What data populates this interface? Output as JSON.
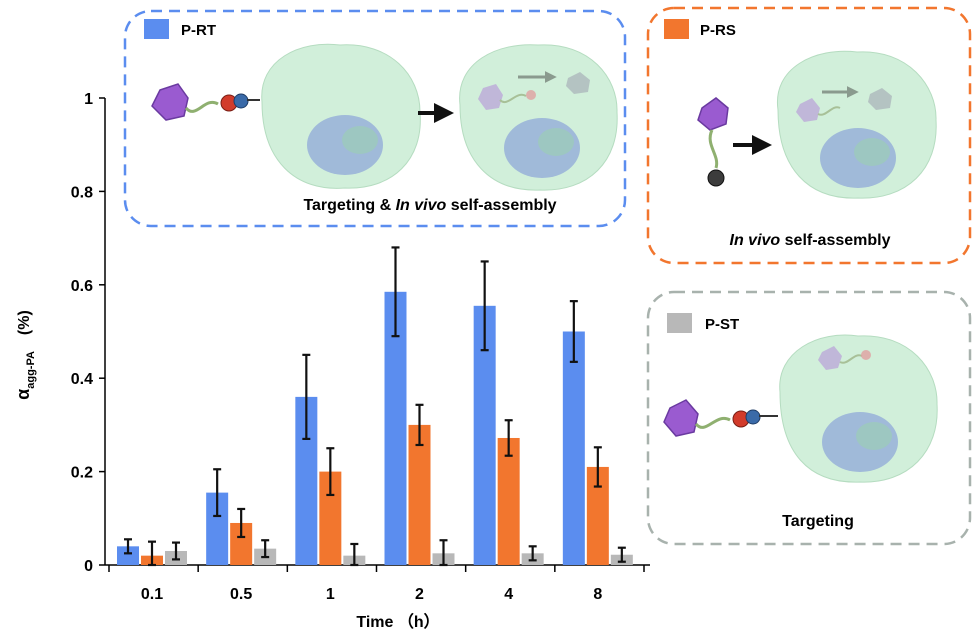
{
  "colors": {
    "p_rt": "#5b8def",
    "p_rs": "#f2762e",
    "p_st": "#b8b8b8",
    "blue_frame": "#5b8def",
    "orange_frame": "#f2762e",
    "gray_frame": "#a8b2ad",
    "cell": "#c9ecd3",
    "nucleus": "#8fa8d8",
    "payload": "#9a5bd0"
  },
  "chart_data": {
    "type": "bar",
    "categories": [
      "0.1",
      "0.5",
      "1",
      "2",
      "4",
      "8"
    ],
    "series": [
      {
        "name": "P-RT",
        "color": "#5b8def",
        "values": [
          0.04,
          0.155,
          0.36,
          0.585,
          0.555,
          0.5
        ],
        "errors": [
          0.015,
          0.05,
          0.09,
          0.095,
          0.095,
          0.065
        ]
      },
      {
        "name": "P-RS",
        "color": "#f2762e",
        "values": [
          0.02,
          0.09,
          0.2,
          0.3,
          0.272,
          0.21
        ],
        "errors": [
          0.03,
          0.03,
          0.05,
          0.043,
          0.038,
          0.042
        ]
      },
      {
        "name": "P-ST",
        "color": "#b8b8b8",
        "values": [
          0.03,
          0.035,
          0.02,
          0.025,
          0.025,
          0.022
        ],
        "errors": [
          0.018,
          0.018,
          0.025,
          0.028,
          0.015,
          0.015
        ]
      }
    ],
    "ylim": [
      0,
      1
    ],
    "yticks": [
      "0",
      "0.2",
      "0.4",
      "0.6",
      "0.8",
      "1"
    ],
    "xlabel": "Time （h）",
    "ylabel_main": "α",
    "ylabel_sub": "agg-PA",
    "ylabel_unit": "(%)",
    "grid": false
  },
  "panels": {
    "prt": {
      "legend": "P-RT",
      "caption_pre": "Targeting & ",
      "caption_italic": "In vivo",
      "caption_post": " self-assembly"
    },
    "prs": {
      "legend": "P-RS",
      "caption_italic": "In vivo",
      "caption_post": " self-assembly"
    },
    "pst": {
      "legend": "P-ST",
      "caption": "Targeting"
    }
  }
}
